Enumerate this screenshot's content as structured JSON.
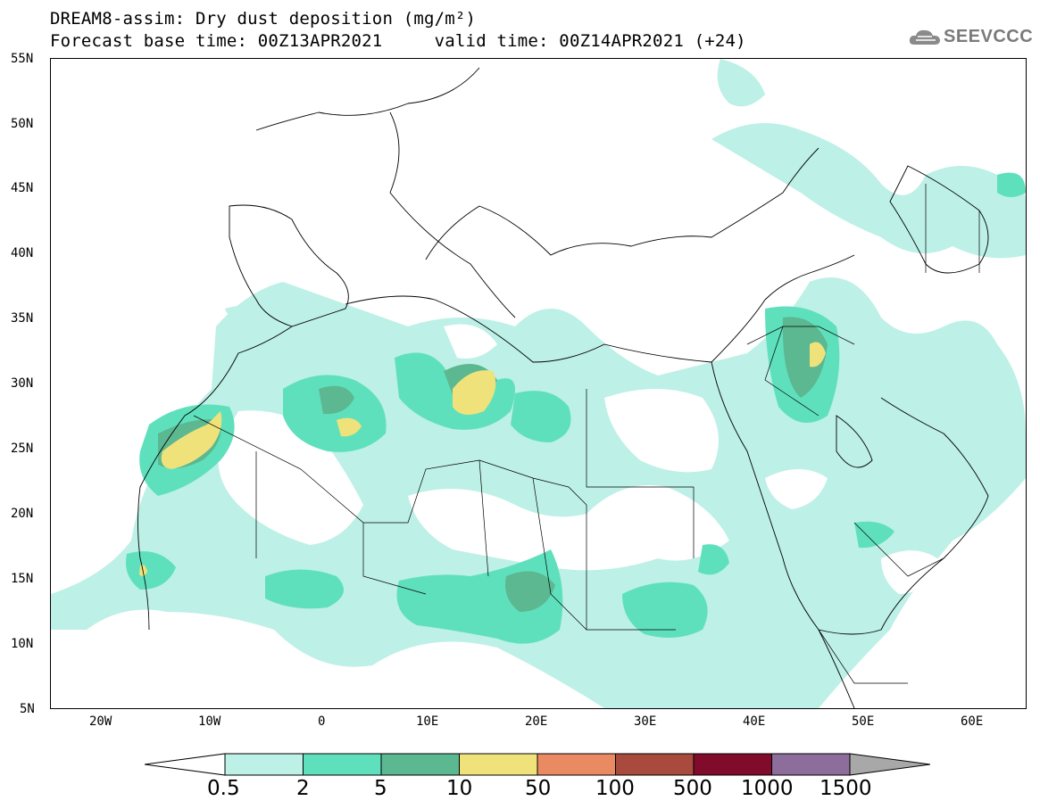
{
  "title": {
    "line1": "DREAM8-assim: Dry dust deposition (mg/m²)",
    "line2": "Forecast base time: 00Z13APR2021     valid time: 00Z14APR2021 (+24)"
  },
  "logo": {
    "text": "SEEVCCC",
    "icon": "cloud-icon"
  },
  "map": {
    "lat_range": [
      5,
      55
    ],
    "lon_range": [
      -25,
      65
    ],
    "lat_ticks": [
      "55N",
      "50N",
      "45N",
      "40N",
      "35N",
      "30N",
      "25N",
      "20N",
      "15N",
      "10N",
      "5N"
    ],
    "lon_ticks": [
      "20W",
      "10W",
      "0",
      "10E",
      "20E",
      "30E",
      "40E",
      "50E",
      "60E"
    ]
  },
  "legend": {
    "labels": [
      "0.5",
      "2",
      "5",
      "10",
      "50",
      "100",
      "500",
      "1000",
      "1500"
    ],
    "colors": [
      "#bdf0e6",
      "#5fe0bd",
      "#5cb890",
      "#f0e27a",
      "#ea8a62",
      "#a84a3e",
      "#800b2a",
      "#8c6d9c",
      "#a8a8a8"
    ]
  }
}
